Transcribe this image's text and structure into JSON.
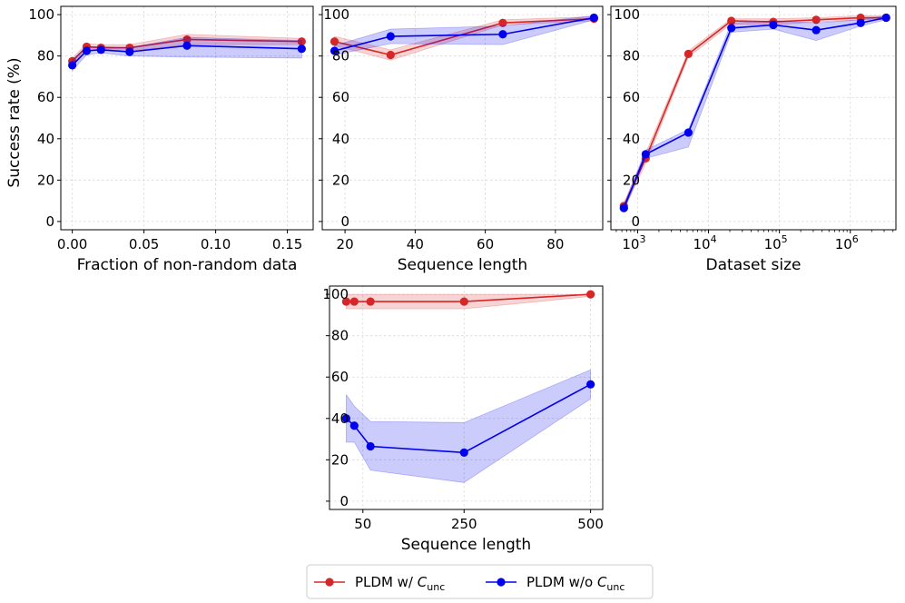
{
  "figure": {
    "legend": {
      "entries": [
        {
          "name": "PLDM w/ C_unc",
          "prefix": "PLDM w/ ",
          "symbol": "C",
          "subscript": "unc",
          "color": "#d62728"
        },
        {
          "name": "PLDM w/o C_unc",
          "prefix": "PLDM w/o ",
          "symbol": "C",
          "subscript": "unc",
          "color": "#0000ee"
        }
      ]
    },
    "colors": {
      "with_cunc": "#d62728",
      "without_cunc": "#0000ee"
    },
    "ylabel": "Success rate (%)"
  },
  "chart_data": [
    {
      "id": "fraction",
      "type": "line",
      "xlabel": "Fraction of non-random data",
      "ylabel": "Success rate (%)",
      "xscale": "linear",
      "xlim": [
        -0.008,
        0.168
      ],
      "ylim": [
        -4,
        104
      ],
      "xticks": [
        0.0,
        0.05,
        0.1,
        0.15
      ],
      "xtick_labels": [
        "0.00",
        "0.05",
        "0.10",
        "0.15"
      ],
      "yticks": [
        0,
        20,
        40,
        60,
        80,
        100
      ],
      "ytick_labels": [
        "0",
        "20",
        "40",
        "60",
        "80",
        "100"
      ],
      "grid": true,
      "series": [
        {
          "name": "PLDM w/ C_unc",
          "color": "#d62728",
          "x": [
            0.0,
            0.01,
            0.02,
            0.04,
            0.08,
            0.16
          ],
          "y": [
            77.5,
            84.5,
            84,
            84,
            88,
            87
          ],
          "lower": [
            76,
            83,
            82.5,
            82.5,
            85.5,
            85.5
          ],
          "upper": [
            79,
            86,
            85.5,
            85.5,
            90.5,
            88.5
          ]
        },
        {
          "name": "PLDM w/o C_unc",
          "color": "#0000ee",
          "x": [
            0.0,
            0.01,
            0.02,
            0.04,
            0.08,
            0.16
          ],
          "y": [
            75.5,
            82.5,
            83,
            82,
            85,
            83.5
          ],
          "lower": [
            73,
            80.5,
            81.5,
            80,
            79.5,
            79
          ],
          "upper": [
            78,
            84.5,
            84.5,
            84,
            89,
            87.5
          ]
        }
      ]
    },
    {
      "id": "seqlen_top",
      "type": "line",
      "xlabel": "Sequence length",
      "ylabel": "",
      "xscale": "linear",
      "xlim": [
        13.5,
        93.5
      ],
      "ylim": [
        -4,
        104
      ],
      "xticks": [
        20,
        40,
        60,
        80
      ],
      "xtick_labels": [
        "20",
        "40",
        "60",
        "80"
      ],
      "yticks": [
        0,
        20,
        40,
        60,
        80,
        100
      ],
      "ytick_labels": [
        "0",
        "20",
        "40",
        "60",
        "80",
        "100"
      ],
      "grid": true,
      "series": [
        {
          "name": "PLDM w/ C_unc",
          "color": "#d62728",
          "x": [
            17,
            33,
            65,
            91
          ],
          "y": [
            87,
            80.5,
            96,
            98
          ],
          "lower": [
            85,
            78,
            95,
            97
          ],
          "upper": [
            89.5,
            83,
            97.5,
            99
          ]
        },
        {
          "name": "PLDM w/o C_unc",
          "color": "#0000ee",
          "x": [
            17,
            33,
            65,
            91
          ],
          "y": [
            82.5,
            89.5,
            90.5,
            98.5
          ],
          "lower": [
            80.5,
            86,
            85.5,
            97.5
          ],
          "upper": [
            85,
            93,
            94.5,
            99.5
          ]
        }
      ]
    },
    {
      "id": "dataset",
      "type": "line",
      "xlabel": "Dataset size",
      "ylabel": "",
      "xscale": "log",
      "xlim": [
        420,
        4400000
      ],
      "ylim": [
        -4,
        104
      ],
      "xticks": [
        1000,
        10000,
        100000,
        1000000
      ],
      "xtick_labels": [
        [
          "10",
          "3"
        ],
        [
          "10",
          "4"
        ],
        [
          "10",
          "5"
        ],
        [
          "10",
          "6"
        ]
      ],
      "yticks": [
        0,
        20,
        40,
        60,
        80,
        100
      ],
      "ytick_labels": [
        "0",
        "20",
        "40",
        "60",
        "80",
        "100"
      ],
      "grid": true,
      "series": [
        {
          "name": "PLDM w/ C_unc",
          "color": "#d62728",
          "x": [
            640,
            1300,
            5200,
            21000,
            82000,
            330000,
            1400000,
            3200000
          ],
          "y": [
            7.5,
            30.5,
            81,
            97,
            96.5,
            97.5,
            98.5,
            98.5
          ],
          "lower": [
            6,
            28,
            79.5,
            95.5,
            95,
            96.5,
            97.5,
            97.5
          ],
          "upper": [
            9,
            33,
            82.5,
            98,
            98,
            98.5,
            99.5,
            99.5
          ]
        },
        {
          "name": "PLDM w/o C_unc",
          "color": "#0000ee",
          "x": [
            640,
            1300,
            5200,
            21000,
            82000,
            330000,
            1400000,
            3200000
          ],
          "y": [
            6.5,
            32.5,
            43,
            93.5,
            95,
            92.5,
            96,
            98.5
          ],
          "lower": [
            5,
            30.5,
            36,
            91.5,
            93,
            87.5,
            94.5,
            97.5
          ],
          "upper": [
            8,
            34.5,
            44.5,
            96,
            97,
            96,
            97.5,
            99.5
          ]
        }
      ]
    },
    {
      "id": "seqlen_bottom",
      "type": "line",
      "xlabel": "Sequence length",
      "ylabel": "",
      "xscale": "linear",
      "xlim": [
        -16,
        524
      ],
      "ylim": [
        -4,
        104
      ],
      "xticks": [
        50,
        250,
        500
      ],
      "xtick_labels": [
        "50",
        "250",
        "500"
      ],
      "yticks": [
        0,
        20,
        40,
        60,
        80,
        100
      ],
      "ytick_labels": [
        "0",
        "20",
        "40",
        "60",
        "80",
        "100"
      ],
      "grid": true,
      "series": [
        {
          "name": "PLDM w/ C_unc",
          "color": "#d62728",
          "x": [
            17,
            33,
            65,
            250,
            500
          ],
          "y": [
            96.5,
            96.5,
            96.5,
            96.5,
            100
          ],
          "lower": [
            93,
            93,
            93,
            93,
            99
          ],
          "upper": [
            100,
            100,
            100,
            100,
            100
          ]
        },
        {
          "name": "PLDM w/o C_unc",
          "color": "#0000ee",
          "x": [
            17,
            33,
            65,
            250,
            500
          ],
          "y": [
            40,
            36.5,
            26.5,
            23.5,
            56.5
          ],
          "lower": [
            28.5,
            28.5,
            15,
            9,
            49.5
          ],
          "upper": [
            51.5,
            46,
            38.5,
            38,
            63.5
          ]
        }
      ]
    }
  ]
}
